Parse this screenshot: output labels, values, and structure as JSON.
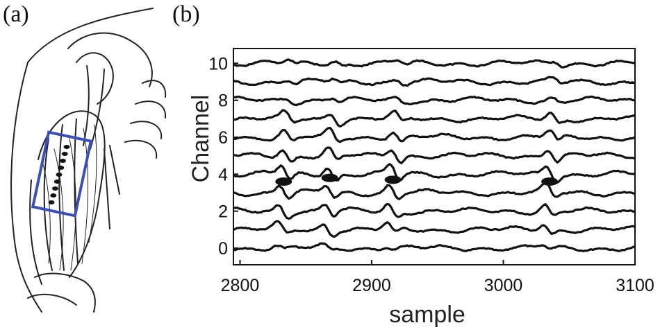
{
  "panels": {
    "a": {
      "label": "(a)"
    },
    "b": {
      "label": "(b)"
    }
  },
  "colors": {
    "electrode_frame": "#3a4fb8",
    "trace": "#111111"
  },
  "electrode_array": {
    "electrode_count": 9
  },
  "chart_data": {
    "type": "line",
    "xlabel": "sample",
    "ylabel": "Channel",
    "xlim": [
      2795,
      3100
    ],
    "ylim": [
      10.8,
      -0.9
    ],
    "x_ticks": [
      2800,
      2900,
      3000,
      3100
    ],
    "y_ticks": [
      0,
      2,
      4,
      6,
      8,
      10
    ],
    "channels": [
      0,
      1,
      2,
      3,
      4,
      5,
      6,
      7,
      8,
      9,
      10
    ],
    "grid": false,
    "events": [
      {
        "channel": 3.6,
        "sample": 2840
      },
      {
        "channel": 3.8,
        "sample": 2875
      },
      {
        "channel": 3.7,
        "sample": 2923
      },
      {
        "channel": 3.6,
        "sample": 3042
      }
    ]
  }
}
